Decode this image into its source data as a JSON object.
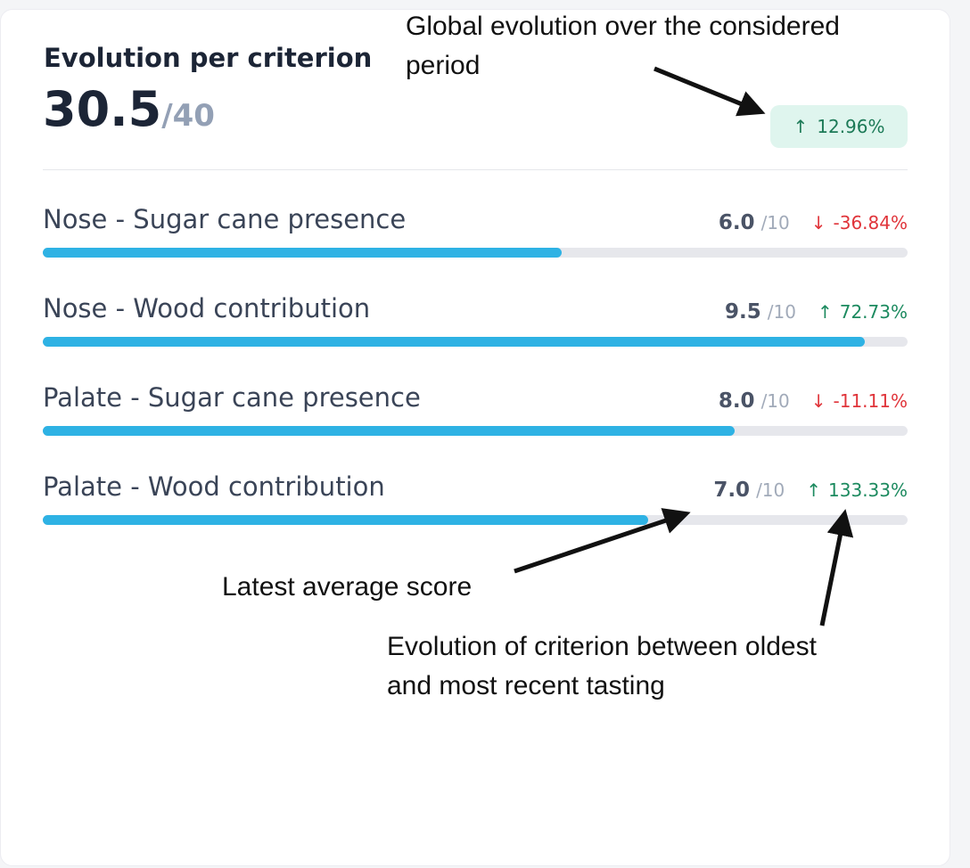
{
  "card": {
    "title": "Evolution per criterion",
    "score": "30.5",
    "score_max": "/40",
    "global_evolution": {
      "arrow": "↑",
      "value": "12.96%",
      "direction": "up"
    }
  },
  "criteria": [
    {
      "label": "Nose - Sugar cane presence",
      "score": "6.0",
      "max": "/10",
      "arrow": "↓",
      "evolution": "-36.84%",
      "direction": "down",
      "fill_fraction": 0.6
    },
    {
      "label": "Nose - Wood contribution",
      "score": "9.5",
      "max": "/10",
      "arrow": "↑",
      "evolution": "72.73%",
      "direction": "up",
      "fill_fraction": 0.95
    },
    {
      "label": "Palate - Sugar cane presence",
      "score": "8.0",
      "max": "/10",
      "arrow": "↓",
      "evolution": "-11.11%",
      "direction": "down",
      "fill_fraction": 0.8
    },
    {
      "label": "Palate - Wood contribution",
      "score": "7.0",
      "max": "/10",
      "arrow": "↑",
      "evolution": "133.33%",
      "direction": "up",
      "fill_fraction": 0.7
    }
  ],
  "annotations": {
    "global_line1": "Global evolution over the considered",
    "global_line2": "period",
    "latest_score": "Latest average score",
    "evolution_line1": "Evolution of criterion between oldest",
    "evolution_line2": "and most recent tasting"
  },
  "colors": {
    "bar_fill": "#2eb2e4",
    "bar_track": "#e6e7ec",
    "up": "#1c8a5f",
    "down": "#e0343a",
    "badge_bg": "#dff5ee"
  }
}
